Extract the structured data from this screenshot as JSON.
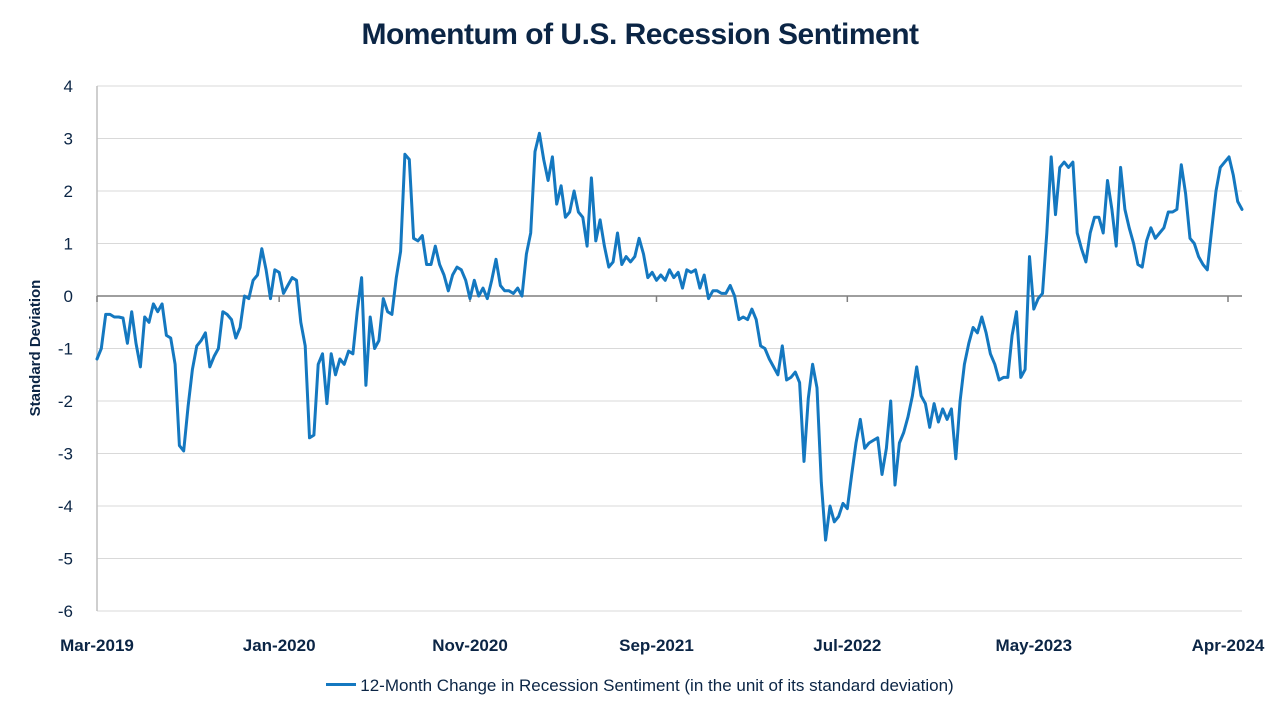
{
  "chart_data": {
    "type": "line",
    "title": "Momentum of U.S. Recession Sentiment",
    "ylabel": "Standard Deviation",
    "ylim": [
      -6,
      4
    ],
    "yticks": [
      "4",
      "3",
      "2",
      "1",
      "0",
      "-1",
      "-2",
      "-3",
      "-4",
      "-5",
      "-6"
    ],
    "xtick_labels": [
      "Mar-2019",
      "Jan-2020",
      "Nov-2020",
      "Sep-2021",
      "Jul-2022",
      "May-2023",
      "Apr-2024"
    ],
    "legend_position": "bottom",
    "grid": true,
    "series": [
      {
        "name": "12-Month Change in Recession Sentiment (in the unit of its standard deviation)",
        "color": "#1478c0",
        "points": [
          [
            "2019-03",
            -1.2
          ],
          [
            "2019-03",
            -1.0
          ],
          [
            "2019-04",
            -0.35
          ],
          [
            "2019-04",
            -0.35
          ],
          [
            "2019-04",
            -0.4
          ],
          [
            "2019-04",
            -0.4
          ],
          [
            "2019-04",
            -0.42
          ],
          [
            "2019-05",
            -0.9
          ],
          [
            "2019-05",
            -0.3
          ],
          [
            "2019-05",
            -0.9
          ],
          [
            "2019-05",
            -1.35
          ],
          [
            "2019-05",
            -0.4
          ],
          [
            "2019-06",
            -0.5
          ],
          [
            "2019-06",
            -0.15
          ],
          [
            "2019-06",
            -0.3
          ],
          [
            "2019-06",
            -0.15
          ],
          [
            "2019-06",
            -0.75
          ],
          [
            "2019-07",
            -0.8
          ],
          [
            "2019-07",
            -1.3
          ],
          [
            "2019-07",
            -2.85
          ],
          [
            "2019-07",
            -2.95
          ],
          [
            "2019-08",
            -2.1
          ],
          [
            "2019-08",
            -1.4
          ],
          [
            "2019-08",
            -0.95
          ],
          [
            "2019-08",
            -0.85
          ],
          [
            "2019-09",
            -0.7
          ],
          [
            "2019-09",
            -1.35
          ],
          [
            "2019-09",
            -1.15
          ],
          [
            "2019-09",
            -1.0
          ],
          [
            "2019-09",
            -0.3
          ],
          [
            "2019-10",
            -0.35
          ],
          [
            "2019-10",
            -0.45
          ],
          [
            "2019-10",
            -0.8
          ],
          [
            "2019-10",
            -0.6
          ],
          [
            "2019-11",
            0.0
          ],
          [
            "2019-11",
            -0.05
          ],
          [
            "2019-11",
            0.3
          ],
          [
            "2019-11",
            0.4
          ],
          [
            "2019-12",
            0.9
          ],
          [
            "2019-12",
            0.5
          ],
          [
            "2019-12",
            -0.05
          ],
          [
            "2019-12",
            0.5
          ],
          [
            "2020-01",
            0.45
          ],
          [
            "2020-01",
            0.05
          ],
          [
            "2020-01",
            0.2
          ],
          [
            "2020-01",
            0.35
          ],
          [
            "2020-01",
            0.3
          ],
          [
            "2020-02",
            -0.5
          ],
          [
            "2020-02",
            -0.95
          ],
          [
            "2020-02",
            -2.7
          ],
          [
            "2020-02",
            -2.65
          ],
          [
            "2020-03",
            -1.3
          ],
          [
            "2020-03",
            -1.1
          ],
          [
            "2020-03",
            -2.05
          ],
          [
            "2020-03",
            -1.1
          ],
          [
            "2020-04",
            -1.5
          ],
          [
            "2020-04",
            -1.2
          ],
          [
            "2020-04",
            -1.3
          ],
          [
            "2020-04",
            -1.05
          ],
          [
            "2020-04",
            -1.1
          ],
          [
            "2020-05",
            -0.3
          ],
          [
            "2020-05",
            0.35
          ],
          [
            "2020-05",
            -1.7
          ],
          [
            "2020-05",
            -0.4
          ],
          [
            "2020-06",
            -1.0
          ],
          [
            "2020-06",
            -0.85
          ],
          [
            "2020-06",
            -0.05
          ],
          [
            "2020-06",
            -0.3
          ],
          [
            "2020-07",
            -0.35
          ],
          [
            "2020-07",
            0.35
          ],
          [
            "2020-07",
            0.85
          ],
          [
            "2020-07",
            2.7
          ],
          [
            "2020-07",
            2.6
          ],
          [
            "2020-08",
            1.1
          ],
          [
            "2020-08",
            1.05
          ],
          [
            "2020-08",
            1.15
          ],
          [
            "2020-08",
            0.6
          ],
          [
            "2020-09",
            0.6
          ],
          [
            "2020-09",
            0.95
          ],
          [
            "2020-09",
            0.6
          ],
          [
            "2020-09",
            0.4
          ],
          [
            "2020-10",
            0.1
          ],
          [
            "2020-10",
            0.4
          ],
          [
            "2020-10",
            0.55
          ],
          [
            "2020-10",
            0.5
          ],
          [
            "2020-10",
            0.3
          ],
          [
            "2020-11",
            -0.05
          ],
          [
            "2020-11",
            0.3
          ],
          [
            "2020-11",
            0.0
          ],
          [
            "2020-11",
            0.15
          ],
          [
            "2020-12",
            -0.05
          ],
          [
            "2020-12",
            0.3
          ],
          [
            "2020-12",
            0.7
          ],
          [
            "2020-12",
            0.2
          ],
          [
            "2020-12",
            0.1
          ],
          [
            "2021-01",
            0.1
          ],
          [
            "2021-01",
            0.05
          ],
          [
            "2021-01",
            0.15
          ],
          [
            "2021-01",
            0.0
          ],
          [
            "2021-02",
            0.8
          ],
          [
            "2021-02",
            1.2
          ],
          [
            "2021-02",
            2.75
          ],
          [
            "2021-02",
            3.1
          ],
          [
            "2021-03",
            2.6
          ],
          [
            "2021-03",
            2.2
          ],
          [
            "2021-03",
            2.65
          ],
          [
            "2021-03",
            1.75
          ],
          [
            "2021-03",
            2.1
          ],
          [
            "2021-04",
            1.5
          ],
          [
            "2021-04",
            1.6
          ],
          [
            "2021-04",
            2.0
          ],
          [
            "2021-04",
            1.6
          ],
          [
            "2021-05",
            1.5
          ],
          [
            "2021-05",
            0.95
          ],
          [
            "2021-05",
            2.25
          ],
          [
            "2021-05",
            1.05
          ],
          [
            "2021-06",
            1.45
          ],
          [
            "2021-06",
            0.95
          ],
          [
            "2021-06",
            0.55
          ],
          [
            "2021-06",
            0.65
          ],
          [
            "2021-06",
            1.2
          ],
          [
            "2021-07",
            0.6
          ],
          [
            "2021-07",
            0.75
          ],
          [
            "2021-07",
            0.65
          ],
          [
            "2021-07",
            0.75
          ],
          [
            "2021-08",
            1.1
          ],
          [
            "2021-08",
            0.8
          ],
          [
            "2021-08",
            0.35
          ],
          [
            "2021-08",
            0.45
          ],
          [
            "2021-09",
            0.3
          ],
          [
            "2021-09",
            0.4
          ],
          [
            "2021-09",
            0.3
          ],
          [
            "2021-09",
            0.5
          ],
          [
            "2021-09",
            0.35
          ],
          [
            "2021-10",
            0.45
          ],
          [
            "2021-10",
            0.15
          ],
          [
            "2021-10",
            0.5
          ],
          [
            "2021-10",
            0.45
          ],
          [
            "2021-11",
            0.5
          ],
          [
            "2021-11",
            0.15
          ],
          [
            "2021-11",
            0.4
          ],
          [
            "2021-11",
            -0.05
          ],
          [
            "2021-12",
            0.1
          ],
          [
            "2021-12",
            0.1
          ],
          [
            "2021-12",
            0.05
          ],
          [
            "2021-12",
            0.05
          ],
          [
            "2021-12",
            0.2
          ],
          [
            "2022-01",
            0.0
          ],
          [
            "2022-01",
            -0.45
          ],
          [
            "2022-01",
            -0.4
          ],
          [
            "2022-01",
            -0.45
          ],
          [
            "2022-02",
            -0.25
          ],
          [
            "2022-02",
            -0.45
          ],
          [
            "2022-02",
            -0.95
          ],
          [
            "2022-02",
            -1.0
          ],
          [
            "2022-03",
            -1.2
          ],
          [
            "2022-03",
            -1.35
          ],
          [
            "2022-03",
            -1.5
          ],
          [
            "2022-03",
            -0.95
          ],
          [
            "2022-03",
            -1.6
          ],
          [
            "2022-04",
            -1.55
          ],
          [
            "2022-04",
            -1.45
          ],
          [
            "2022-04",
            -1.65
          ],
          [
            "2022-04",
            -3.15
          ],
          [
            "2022-05",
            -1.95
          ],
          [
            "2022-05",
            -1.3
          ],
          [
            "2022-05",
            -1.75
          ],
          [
            "2022-05",
            -3.55
          ],
          [
            "2022-06",
            -4.65
          ],
          [
            "2022-06",
            -4.0
          ],
          [
            "2022-06",
            -4.3
          ],
          [
            "2022-06",
            -4.2
          ],
          [
            "2022-06",
            -3.95
          ],
          [
            "2022-07",
            -4.05
          ],
          [
            "2022-07",
            -3.4
          ],
          [
            "2022-07",
            -2.8
          ],
          [
            "2022-07",
            -2.35
          ],
          [
            "2022-08",
            -2.9
          ],
          [
            "2022-08",
            -2.8
          ],
          [
            "2022-08",
            -2.75
          ],
          [
            "2022-08",
            -2.7
          ],
          [
            "2022-09",
            -3.4
          ],
          [
            "2022-09",
            -2.9
          ],
          [
            "2022-09",
            -2.0
          ],
          [
            "2022-09",
            -3.6
          ],
          [
            "2022-09",
            -2.8
          ],
          [
            "2022-10",
            -2.6
          ],
          [
            "2022-10",
            -2.3
          ],
          [
            "2022-10",
            -1.9
          ],
          [
            "2022-10",
            -1.35
          ],
          [
            "2022-11",
            -1.9
          ],
          [
            "2022-11",
            -2.05
          ],
          [
            "2022-11",
            -2.5
          ],
          [
            "2022-11",
            -2.05
          ],
          [
            "2022-12",
            -2.4
          ],
          [
            "2022-12",
            -2.15
          ],
          [
            "2022-12",
            -2.35
          ],
          [
            "2022-12",
            -2.15
          ],
          [
            "2022-12",
            -3.1
          ],
          [
            "2023-01",
            -2.0
          ],
          [
            "2023-01",
            -1.3
          ],
          [
            "2023-01",
            -0.9
          ],
          [
            "2023-01",
            -0.6
          ],
          [
            "2023-02",
            -0.7
          ],
          [
            "2023-02",
            -0.4
          ],
          [
            "2023-02",
            -0.7
          ],
          [
            "2023-02",
            -1.1
          ],
          [
            "2023-03",
            -1.3
          ],
          [
            "2023-03",
            -1.6
          ],
          [
            "2023-03",
            -1.55
          ],
          [
            "2023-03",
            -1.55
          ],
          [
            "2023-03",
            -0.75
          ],
          [
            "2023-04",
            -0.3
          ],
          [
            "2023-04",
            -1.55
          ],
          [
            "2023-04",
            -1.4
          ],
          [
            "2023-04",
            0.75
          ],
          [
            "2023-05",
            -0.25
          ],
          [
            "2023-05",
            -0.05
          ],
          [
            "2023-05",
            0.05
          ],
          [
            "2023-05",
            1.2
          ],
          [
            "2023-06",
            2.65
          ],
          [
            "2023-06",
            1.55
          ],
          [
            "2023-06",
            2.45
          ],
          [
            "2023-06",
            2.55
          ],
          [
            "2023-06",
            2.45
          ],
          [
            "2023-07",
            2.55
          ],
          [
            "2023-07",
            1.2
          ],
          [
            "2023-07",
            0.9
          ],
          [
            "2023-07",
            0.65
          ],
          [
            "2023-08",
            1.2
          ],
          [
            "2023-08",
            1.5
          ],
          [
            "2023-08",
            1.5
          ],
          [
            "2023-08",
            1.2
          ],
          [
            "2023-09",
            2.2
          ],
          [
            "2023-09",
            1.65
          ],
          [
            "2023-09",
            0.95
          ],
          [
            "2023-09",
            2.45
          ],
          [
            "2023-09",
            1.65
          ],
          [
            "2023-10",
            1.3
          ],
          [
            "2023-10",
            1.0
          ],
          [
            "2023-10",
            0.6
          ],
          [
            "2023-10",
            0.55
          ],
          [
            "2023-11",
            1.05
          ],
          [
            "2023-11",
            1.3
          ],
          [
            "2023-11",
            1.1
          ],
          [
            "2023-11",
            1.2
          ],
          [
            "2023-12",
            1.3
          ],
          [
            "2023-12",
            1.6
          ],
          [
            "2023-12",
            1.6
          ],
          [
            "2023-12",
            1.65
          ],
          [
            "2023-12",
            2.5
          ],
          [
            "2024-01",
            1.95
          ],
          [
            "2024-01",
            1.1
          ],
          [
            "2024-01",
            1.0
          ],
          [
            "2024-01",
            0.75
          ],
          [
            "2024-02",
            0.6
          ],
          [
            "2024-02",
            0.5
          ],
          [
            "2024-02",
            1.25
          ],
          [
            "2024-02",
            2.0
          ],
          [
            "2024-03",
            2.45
          ],
          [
            "2024-03",
            2.55
          ],
          [
            "2024-03",
            2.65
          ],
          [
            "2024-03",
            2.3
          ],
          [
            "2024-04",
            1.8
          ],
          [
            "2024-04",
            1.65
          ]
        ]
      }
    ]
  }
}
